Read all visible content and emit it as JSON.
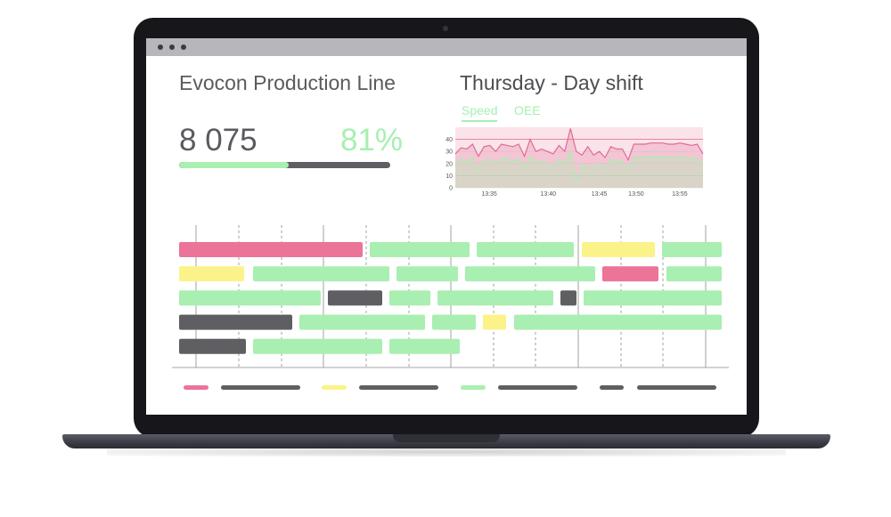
{
  "colors": {
    "green": "#a8efb1",
    "pink": "#ec7499",
    "yellow": "#fbf38a",
    "gray": "#5f5f63",
    "chart_band": "#fbe3ea"
  },
  "window": {
    "controls": [
      "dot",
      "dot",
      "dot"
    ]
  },
  "header": {
    "line_title": "Evocon Production Line",
    "shift_title": "Thursday - Day shift"
  },
  "kpi": {
    "count": "8 075",
    "oee": "81%",
    "progress": 0.52
  },
  "chart_tabs": {
    "active": "Speed",
    "other": "OEE"
  },
  "chart_data": {
    "type": "line",
    "x_ticks": [
      "13:35",
      "13:40",
      "13:45",
      "13:50",
      "13:55"
    ],
    "y_ticks": [
      "0",
      "10",
      "20",
      "30",
      "40"
    ],
    "ylim": [
      0,
      50
    ],
    "band": [
      0,
      50
    ],
    "series": [
      {
        "color": "#e06b93",
        "values": [
          28,
          33,
          32,
          36,
          26,
          34,
          35,
          30,
          36,
          35,
          34,
          36,
          26,
          40,
          30,
          32,
          30,
          28,
          35,
          30,
          49,
          30,
          27,
          34,
          27,
          30,
          25,
          34,
          32,
          32,
          23,
          36,
          36,
          36,
          37,
          37,
          37,
          36,
          36,
          37,
          36,
          35,
          36,
          28
        ]
      },
      {
        "color": "#a8efb1",
        "values": [
          18,
          24,
          22,
          25,
          16,
          22,
          24,
          20,
          24,
          24,
          22,
          24,
          16,
          26,
          20,
          22,
          20,
          18,
          24,
          20,
          30,
          5,
          20,
          16,
          18,
          20,
          15,
          24,
          22,
          22,
          15,
          25,
          25,
          25,
          26,
          26,
          26,
          25,
          25,
          26,
          25,
          24,
          25,
          18
        ]
      }
    ]
  },
  "timeline": {
    "rows": [
      [
        {
          "s": "pink",
          "x": 0,
          "w": 206
        },
        {
          "s": "green",
          "x": 214,
          "w": 112
        },
        {
          "s": "green",
          "x": 334,
          "w": 109
        },
        {
          "s": "yellow",
          "x": 452,
          "w": 82
        },
        {
          "s": "green",
          "x": 542,
          "w": 67
        }
      ],
      [
        {
          "s": "yellow",
          "x": 0,
          "w": 73
        },
        {
          "s": "green",
          "x": 83,
          "w": 153
        },
        {
          "s": "green",
          "x": 244,
          "w": 69
        },
        {
          "s": "green",
          "x": 321,
          "w": 146
        },
        {
          "s": "pink",
          "x": 475,
          "w": 63
        },
        {
          "s": "green",
          "x": 547,
          "w": 62
        }
      ],
      [
        {
          "s": "green",
          "x": 0,
          "w": 159
        },
        {
          "s": "gray",
          "x": 167,
          "w": 61
        },
        {
          "s": "green",
          "x": 236,
          "w": 46
        },
        {
          "s": "green",
          "x": 290,
          "w": 130
        },
        {
          "s": "gray",
          "x": 428,
          "w": 18
        },
        {
          "s": "green",
          "x": 454,
          "w": 155
        }
      ],
      [
        {
          "s": "gray",
          "x": 0,
          "w": 127
        },
        {
          "s": "green",
          "x": 135,
          "w": 141
        },
        {
          "s": "green",
          "x": 284,
          "w": 49
        },
        {
          "s": "yellow",
          "x": 341,
          "w": 26
        },
        {
          "s": "green",
          "x": 376,
          "w": 233
        }
      ],
      [
        {
          "s": "gray",
          "x": 0,
          "w": 75
        },
        {
          "s": "green",
          "x": 83,
          "w": 145
        },
        {
          "s": "green",
          "x": 236,
          "w": 79
        }
      ]
    ]
  },
  "legend": [
    {
      "swatch": "pink",
      "line_w": 89
    },
    {
      "swatch": "yellow",
      "line_w": 89
    },
    {
      "swatch": "green",
      "line_w": 89
    },
    {
      "swatch": "gray",
      "line_w": 89
    }
  ]
}
